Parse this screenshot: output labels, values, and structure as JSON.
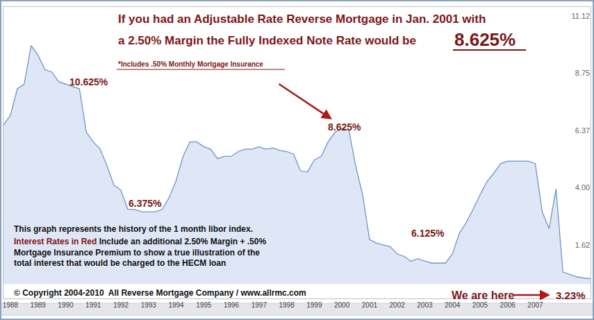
{
  "chart_data": {
    "type": "line",
    "title": "If you had an Adjustable Rate Reverse Mortgage in Jan. 2001 with a 2.50% Margin the Fully Indexed Note Rate would be",
    "subtitle": "*Includes .50% Monthly Mortgage Insurance",
    "annotations": [
      "8.625%",
      "10.625%",
      "6.375%",
      "8.625%",
      "6.125%",
      "We are here",
      "3.23%",
      "This graph represents the history of the 1 month libor index.",
      "Interest Rates in Red",
      "Include an additional 2.50% Margin + .50% Mortgage Insurance Premium to show a true illustration of the total interest that would be charged to the HECM loan",
      "© Copyright 2004-2010  All Reverse Mortgage Company / www.allrmc.com"
    ],
    "categories": [
      null,
      "1988",
      null,
      null,
      null,
      "1989",
      null,
      null,
      null,
      "1990",
      null,
      null,
      null,
      "1991",
      null,
      null,
      null,
      "1992",
      null,
      null,
      null,
      "1993",
      null,
      null,
      null,
      "1994",
      null,
      null,
      null,
      "1995",
      null,
      null,
      null,
      "1996",
      null,
      null,
      null,
      "1997",
      null,
      null,
      null,
      "1998",
      null,
      null,
      null,
      "1999",
      null,
      null,
      null,
      "2000",
      null,
      null,
      null,
      "2001",
      null,
      null,
      null,
      "2002",
      null,
      null,
      null,
      "2003",
      null,
      null,
      null,
      "2004",
      null,
      null,
      null,
      "2005",
      null,
      null,
      null,
      "2006",
      null,
      null,
      null,
      "2007",
      null,
      null,
      null,
      null,
      null,
      null,
      null,
      null
    ],
    "values": [
      6.6,
      7.0,
      8.1,
      8.3,
      9.9,
      9.5,
      8.9,
      8.8,
      8.4,
      8.3,
      8.2,
      8.1,
      6.3,
      5.9,
      5.6,
      4.9,
      4.1,
      3.9,
      3.1,
      3.1,
      3.0,
      3.0,
      3.0,
      3.1,
      3.6,
      4.3,
      5.3,
      5.9,
      5.9,
      5.7,
      5.6,
      5.2,
      5.3,
      5.3,
      5.5,
      5.6,
      5.6,
      5.7,
      5.6,
      5.65,
      5.55,
      5.5,
      5.4,
      4.7,
      4.65,
      5.15,
      5.3,
      5.9,
      6.3,
      6.45,
      6.4,
      4.9,
      3.7,
      1.85,
      1.7,
      1.62,
      1.55,
      1.25,
      1.15,
      0.95,
      1.05,
      0.95,
      0.87,
      0.87,
      0.87,
      1.25,
      2.1,
      2.55,
      3.1,
      3.7,
      4.25,
      4.6,
      5.0,
      5.1,
      5.1,
      5.1,
      5.1,
      5.0,
      3.0,
      2.3,
      3.95,
      0.5,
      0.4,
      0.3,
      0.25,
      0.23
    ],
    "color": "#6f93c8",
    "ylim": [
      -0.6,
      11.5
    ],
    "yticks": [
      1.62,
      {
        "value": 4,
        "label": "4.00"
      },
      6.37,
      8.75,
      11.12
    ],
    "grid": false
  }
}
